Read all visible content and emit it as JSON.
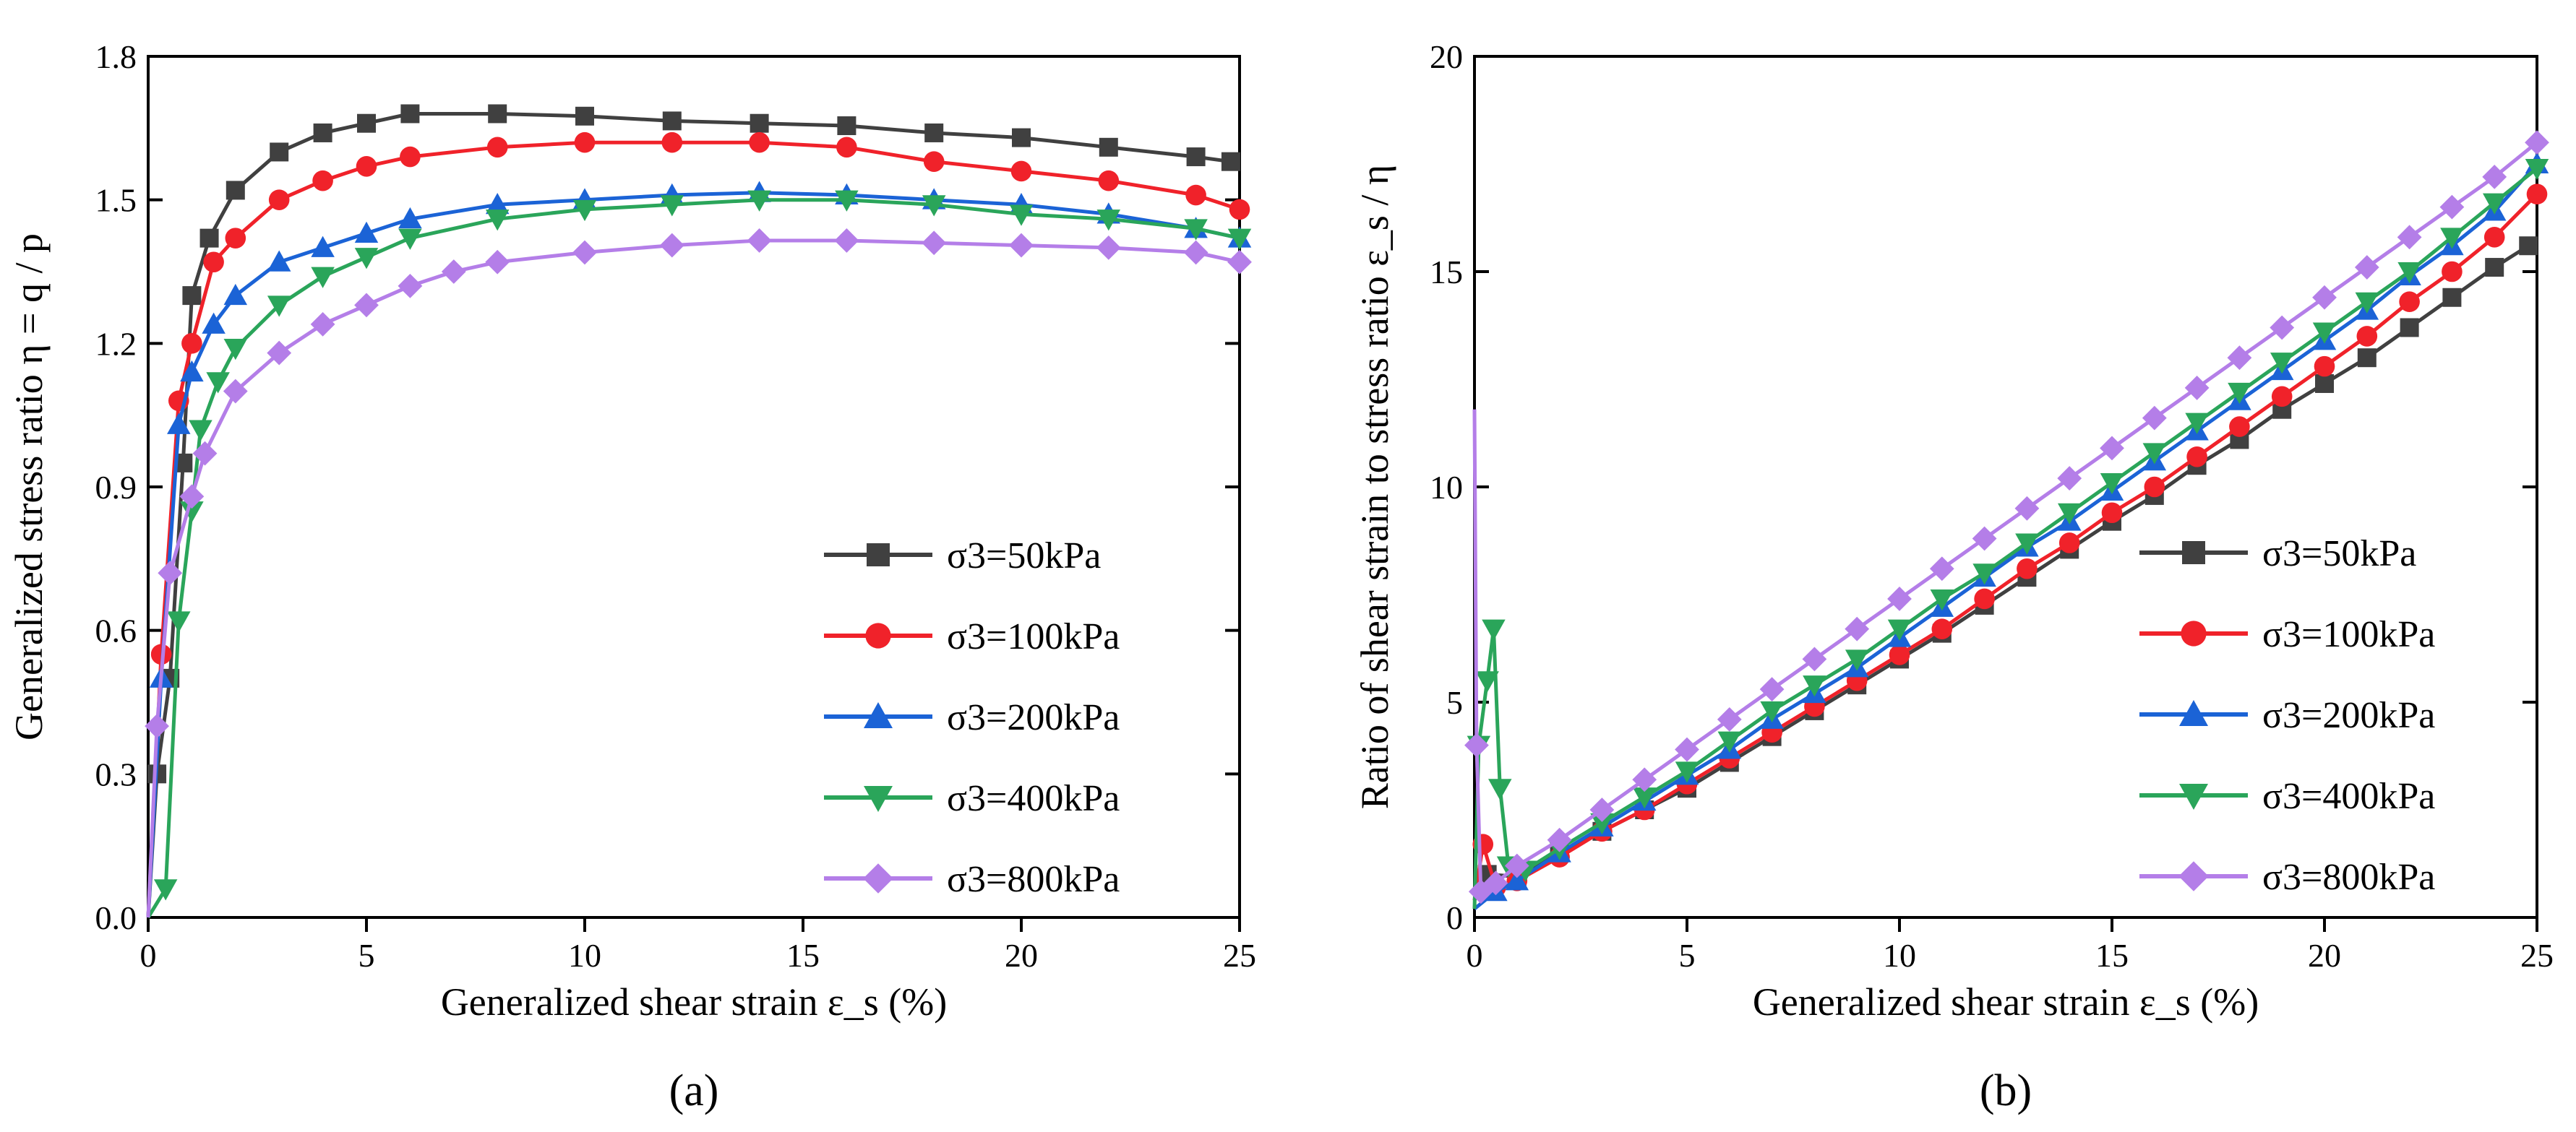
{
  "panels": [
    {
      "id": "a",
      "label": "(a)",
      "xlabel": "Generalized shear strain ε_s (%)",
      "ylabel": "Generalized stress ratio η = q / p",
      "xlim": [
        0,
        25
      ],
      "ylim": [
        0,
        1.8
      ],
      "xticks": [
        "0",
        "5",
        "10",
        "15",
        "20",
        "25"
      ],
      "yticks": [
        "0.0",
        "0.3",
        "0.6",
        "0.9",
        "1.2",
        "1.5",
        "1.8"
      ],
      "legend_loc": "lower-right",
      "legend": [
        "σ3=50kPa",
        "σ3=100kPa",
        "σ3=200kPa",
        "σ3=400kPa",
        "σ3=800kPa"
      ]
    },
    {
      "id": "b",
      "label": "(b)",
      "xlabel": "Generalized shear strain ε_s (%)",
      "ylabel": "Ratio of shear strain to stress ratio ε_s / η",
      "xlim": [
        0,
        25
      ],
      "ylim": [
        0,
        20
      ],
      "xticks": [
        "0",
        "5",
        "10",
        "15",
        "20",
        "25"
      ],
      "yticks": [
        "0",
        "5",
        "10",
        "15",
        "20"
      ],
      "legend_loc": "lower-right",
      "legend": [
        "σ3=50kPa",
        "σ3=100kPa",
        "σ3=200kPa",
        "σ3=400kPa",
        "σ3=800kPa"
      ]
    }
  ],
  "chart_data": [
    {
      "type": "line",
      "title": "",
      "xlabel": "Generalized shear strain ε_s (%)",
      "ylabel": "Generalized stress ratio η = q / p",
      "xlim": [
        0,
        25
      ],
      "ylim": [
        0,
        1.8
      ],
      "series": [
        {
          "name": "σ3=50kPa",
          "color": "#404040",
          "marker": "square",
          "points": [
            [
              0,
              0
            ],
            [
              0.2,
              0.3
            ],
            [
              0.5,
              0.5
            ],
            [
              0.8,
              0.95
            ],
            [
              1,
              1.3
            ],
            [
              1.4,
              1.42
            ],
            [
              2,
              1.52
            ],
            [
              3,
              1.6
            ],
            [
              4,
              1.64
            ],
            [
              5,
              1.66
            ],
            [
              6,
              1.68
            ],
            [
              8,
              1.68
            ],
            [
              10,
              1.675
            ],
            [
              12,
              1.665
            ],
            [
              14,
              1.66
            ],
            [
              16,
              1.655
            ],
            [
              18,
              1.64
            ],
            [
              20,
              1.63
            ],
            [
              22,
              1.61
            ],
            [
              24,
              1.59
            ],
            [
              24.8,
              1.58
            ]
          ]
        },
        {
          "name": "σ3=100kPa",
          "color": "#f0222a",
          "marker": "circle",
          "points": [
            [
              0,
              0
            ],
            [
              0.3,
              0.55
            ],
            [
              0.7,
              1.08
            ],
            [
              1,
              1.2
            ],
            [
              1.5,
              1.37
            ],
            [
              2,
              1.42
            ],
            [
              3,
              1.5
            ],
            [
              4,
              1.54
            ],
            [
              5,
              1.57
            ],
            [
              6,
              1.59
            ],
            [
              8,
              1.61
            ],
            [
              10,
              1.62
            ],
            [
              12,
              1.62
            ],
            [
              14,
              1.62
            ],
            [
              16,
              1.61
            ],
            [
              18,
              1.58
            ],
            [
              20,
              1.56
            ],
            [
              22,
              1.54
            ],
            [
              24,
              1.51
            ],
            [
              25,
              1.48
            ]
          ]
        },
        {
          "name": "σ3=200kPa",
          "color": "#1b63d6",
          "marker": "triangle-up",
          "points": [
            [
              0,
              0
            ],
            [
              0.3,
              0.5
            ],
            [
              0.7,
              1.03
            ],
            [
              1,
              1.14
            ],
            [
              1.5,
              1.24
            ],
            [
              2,
              1.3
            ],
            [
              3,
              1.37
            ],
            [
              4,
              1.4
            ],
            [
              5,
              1.43
            ],
            [
              6,
              1.46
            ],
            [
              8,
              1.49
            ],
            [
              10,
              1.5
            ],
            [
              12,
              1.51
            ],
            [
              14,
              1.515
            ],
            [
              16,
              1.51
            ],
            [
              18,
              1.5
            ],
            [
              20,
              1.49
            ],
            [
              22,
              1.47
            ],
            [
              24,
              1.44
            ],
            [
              25,
              1.42
            ]
          ]
        },
        {
          "name": "σ3=400kPa",
          "color": "#2aa55a",
          "marker": "triangle-down",
          "points": [
            [
              0,
              0
            ],
            [
              0.4,
              0.06
            ],
            [
              0.7,
              0.62
            ],
            [
              1,
              0.85
            ],
            [
              1.2,
              1.02
            ],
            [
              1.6,
              1.12
            ],
            [
              2,
              1.19
            ],
            [
              3,
              1.28
            ],
            [
              4,
              1.34
            ],
            [
              5,
              1.38
            ],
            [
              6,
              1.42
            ],
            [
              8,
              1.46
            ],
            [
              10,
              1.48
            ],
            [
              12,
              1.49
            ],
            [
              14,
              1.5
            ],
            [
              16,
              1.5
            ],
            [
              18,
              1.49
            ],
            [
              20,
              1.47
            ],
            [
              22,
              1.46
            ],
            [
              24,
              1.44
            ],
            [
              25,
              1.42
            ]
          ]
        },
        {
          "name": "σ3=800kPa",
          "color": "#b47ee8",
          "marker": "diamond",
          "points": [
            [
              0,
              0
            ],
            [
              0.2,
              0.4
            ],
            [
              0.5,
              0.72
            ],
            [
              1,
              0.88
            ],
            [
              1.3,
              0.97
            ],
            [
              2,
              1.1
            ],
            [
              3,
              1.18
            ],
            [
              4,
              1.24
            ],
            [
              5,
              1.28
            ],
            [
              6,
              1.32
            ],
            [
              7,
              1.35
            ],
            [
              8,
              1.37
            ],
            [
              10,
              1.39
            ],
            [
              12,
              1.405
            ],
            [
              14,
              1.415
            ],
            [
              16,
              1.415
            ],
            [
              18,
              1.41
            ],
            [
              20,
              1.405
            ],
            [
              22,
              1.4
            ],
            [
              24,
              1.39
            ],
            [
              25,
              1.37
            ]
          ]
        }
      ]
    },
    {
      "type": "line",
      "title": "",
      "xlabel": "Generalized shear strain ε_s (%)",
      "ylabel": "Ratio of shear strain to stress ratio ε_s / η",
      "xlim": [
        0,
        25
      ],
      "ylim": [
        0,
        20
      ],
      "series": [
        {
          "name": "σ3=50kPa",
          "color": "#404040",
          "marker": "square",
          "points": [
            [
              0,
              0.4
            ],
            [
              0.3,
              1.0
            ],
            [
              1,
              0.95
            ],
            [
              2,
              1.5
            ],
            [
              3,
              2.0
            ],
            [
              4,
              2.5
            ],
            [
              5,
              3.0
            ],
            [
              6,
              3.6
            ],
            [
              7,
              4.2
            ],
            [
              8,
              4.8
            ],
            [
              9,
              5.4
            ],
            [
              10,
              6.0
            ],
            [
              11,
              6.6
            ],
            [
              12,
              7.25
            ],
            [
              13,
              7.9
            ],
            [
              14,
              8.55
            ],
            [
              15,
              9.2
            ],
            [
              16,
              9.8
            ],
            [
              17,
              10.5
            ],
            [
              18,
              11.1
            ],
            [
              19,
              11.8
            ],
            [
              20,
              12.4
            ],
            [
              21,
              13.0
            ],
            [
              22,
              13.7
            ],
            [
              23,
              14.4
            ],
            [
              24,
              15.1
            ],
            [
              24.8,
              15.6
            ]
          ]
        },
        {
          "name": "σ3=100kPa",
          "color": "#f0222a",
          "marker": "circle",
          "points": [
            [
              0,
              0.4
            ],
            [
              0.2,
              1.7
            ],
            [
              0.5,
              0.7
            ],
            [
              1,
              0.85
            ],
            [
              2,
              1.4
            ],
            [
              3,
              2.0
            ],
            [
              4,
              2.5
            ],
            [
              5,
              3.1
            ],
            [
              6,
              3.7
            ],
            [
              7,
              4.3
            ],
            [
              8,
              4.9
            ],
            [
              9,
              5.5
            ],
            [
              10,
              6.1
            ],
            [
              11,
              6.7
            ],
            [
              12,
              7.4
            ],
            [
              13,
              8.1
            ],
            [
              14,
              8.7
            ],
            [
              15,
              9.4
            ],
            [
              16,
              10.0
            ],
            [
              17,
              10.7
            ],
            [
              18,
              11.4
            ],
            [
              19,
              12.1
            ],
            [
              20,
              12.8
            ],
            [
              21,
              13.5
            ],
            [
              22,
              14.3
            ],
            [
              23,
              15.0
            ],
            [
              24,
              15.8
            ],
            [
              25,
              16.8
            ]
          ]
        },
        {
          "name": "σ3=200kPa",
          "color": "#1b63d6",
          "marker": "triangle-up",
          "points": [
            [
              0,
              0.2
            ],
            [
              0.5,
              0.6
            ],
            [
              1,
              0.85
            ],
            [
              2,
              1.5
            ],
            [
              3,
              2.1
            ],
            [
              4,
              2.7
            ],
            [
              5,
              3.3
            ],
            [
              6,
              3.9
            ],
            [
              7,
              4.6
            ],
            [
              8,
              5.2
            ],
            [
              9,
              5.8
            ],
            [
              10,
              6.5
            ],
            [
              11,
              7.2
            ],
            [
              12,
              7.9
            ],
            [
              13,
              8.6
            ],
            [
              14,
              9.2
            ],
            [
              15,
              9.9
            ],
            [
              16,
              10.6
            ],
            [
              17,
              11.3
            ],
            [
              18,
              12.0
            ],
            [
              19,
              12.7
            ],
            [
              20,
              13.4
            ],
            [
              21,
              14.1
            ],
            [
              22,
              14.9
            ],
            [
              23,
              15.6
            ],
            [
              24,
              16.4
            ],
            [
              25,
              17.5
            ]
          ]
        },
        {
          "name": "σ3=400kPa",
          "color": "#2aa55a",
          "marker": "triangle-down",
          "points": [
            [
              0,
              0.2
            ],
            [
              0.1,
              4.0
            ],
            [
              0.3,
              5.5
            ],
            [
              0.45,
              6.7
            ],
            [
              0.6,
              3.0
            ],
            [
              0.8,
              1.2
            ],
            [
              1.2,
              1.1
            ],
            [
              2,
              1.6
            ],
            [
              3,
              2.2
            ],
            [
              4,
              2.8
            ],
            [
              5,
              3.4
            ],
            [
              6,
              4.1
            ],
            [
              7,
              4.8
            ],
            [
              8,
              5.4
            ],
            [
              9,
              6.0
            ],
            [
              10,
              6.7
            ],
            [
              11,
              7.4
            ],
            [
              12,
              8.0
            ],
            [
              13,
              8.7
            ],
            [
              14,
              9.4
            ],
            [
              15,
              10.1
            ],
            [
              16,
              10.8
            ],
            [
              17,
              11.5
            ],
            [
              18,
              12.2
            ],
            [
              19,
              12.9
            ],
            [
              20,
              13.6
            ],
            [
              21,
              14.3
            ],
            [
              22,
              15.0
            ],
            [
              23,
              15.8
            ],
            [
              24,
              16.6
            ],
            [
              25,
              17.4
            ]
          ]
        },
        {
          "name": "σ3=800kPa",
          "color": "#b47ee8",
          "marker": "diamond",
          "points": [
            [
              0,
              11.8
            ],
            [
              0.05,
              4
            ],
            [
              0.15,
              0.6
            ],
            [
              0.5,
              0.8
            ],
            [
              1,
              1.2
            ],
            [
              2,
              1.8
            ],
            [
              3,
              2.5
            ],
            [
              4,
              3.2
            ],
            [
              5,
              3.9
            ],
            [
              6,
              4.6
            ],
            [
              7,
              5.3
            ],
            [
              8,
              6.0
            ],
            [
              9,
              6.7
            ],
            [
              10,
              7.4
            ],
            [
              11,
              8.1
            ],
            [
              12,
              8.8
            ],
            [
              13,
              9.5
            ],
            [
              14,
              10.2
            ],
            [
              15,
              10.9
            ],
            [
              16,
              11.6
            ],
            [
              17,
              12.3
            ],
            [
              18,
              13.0
            ],
            [
              19,
              13.7
            ],
            [
              20,
              14.4
            ],
            [
              21,
              15.1
            ],
            [
              22,
              15.8
            ],
            [
              23,
              16.5
            ],
            [
              24,
              17.2
            ],
            [
              25,
              18.0
            ]
          ]
        }
      ]
    }
  ]
}
